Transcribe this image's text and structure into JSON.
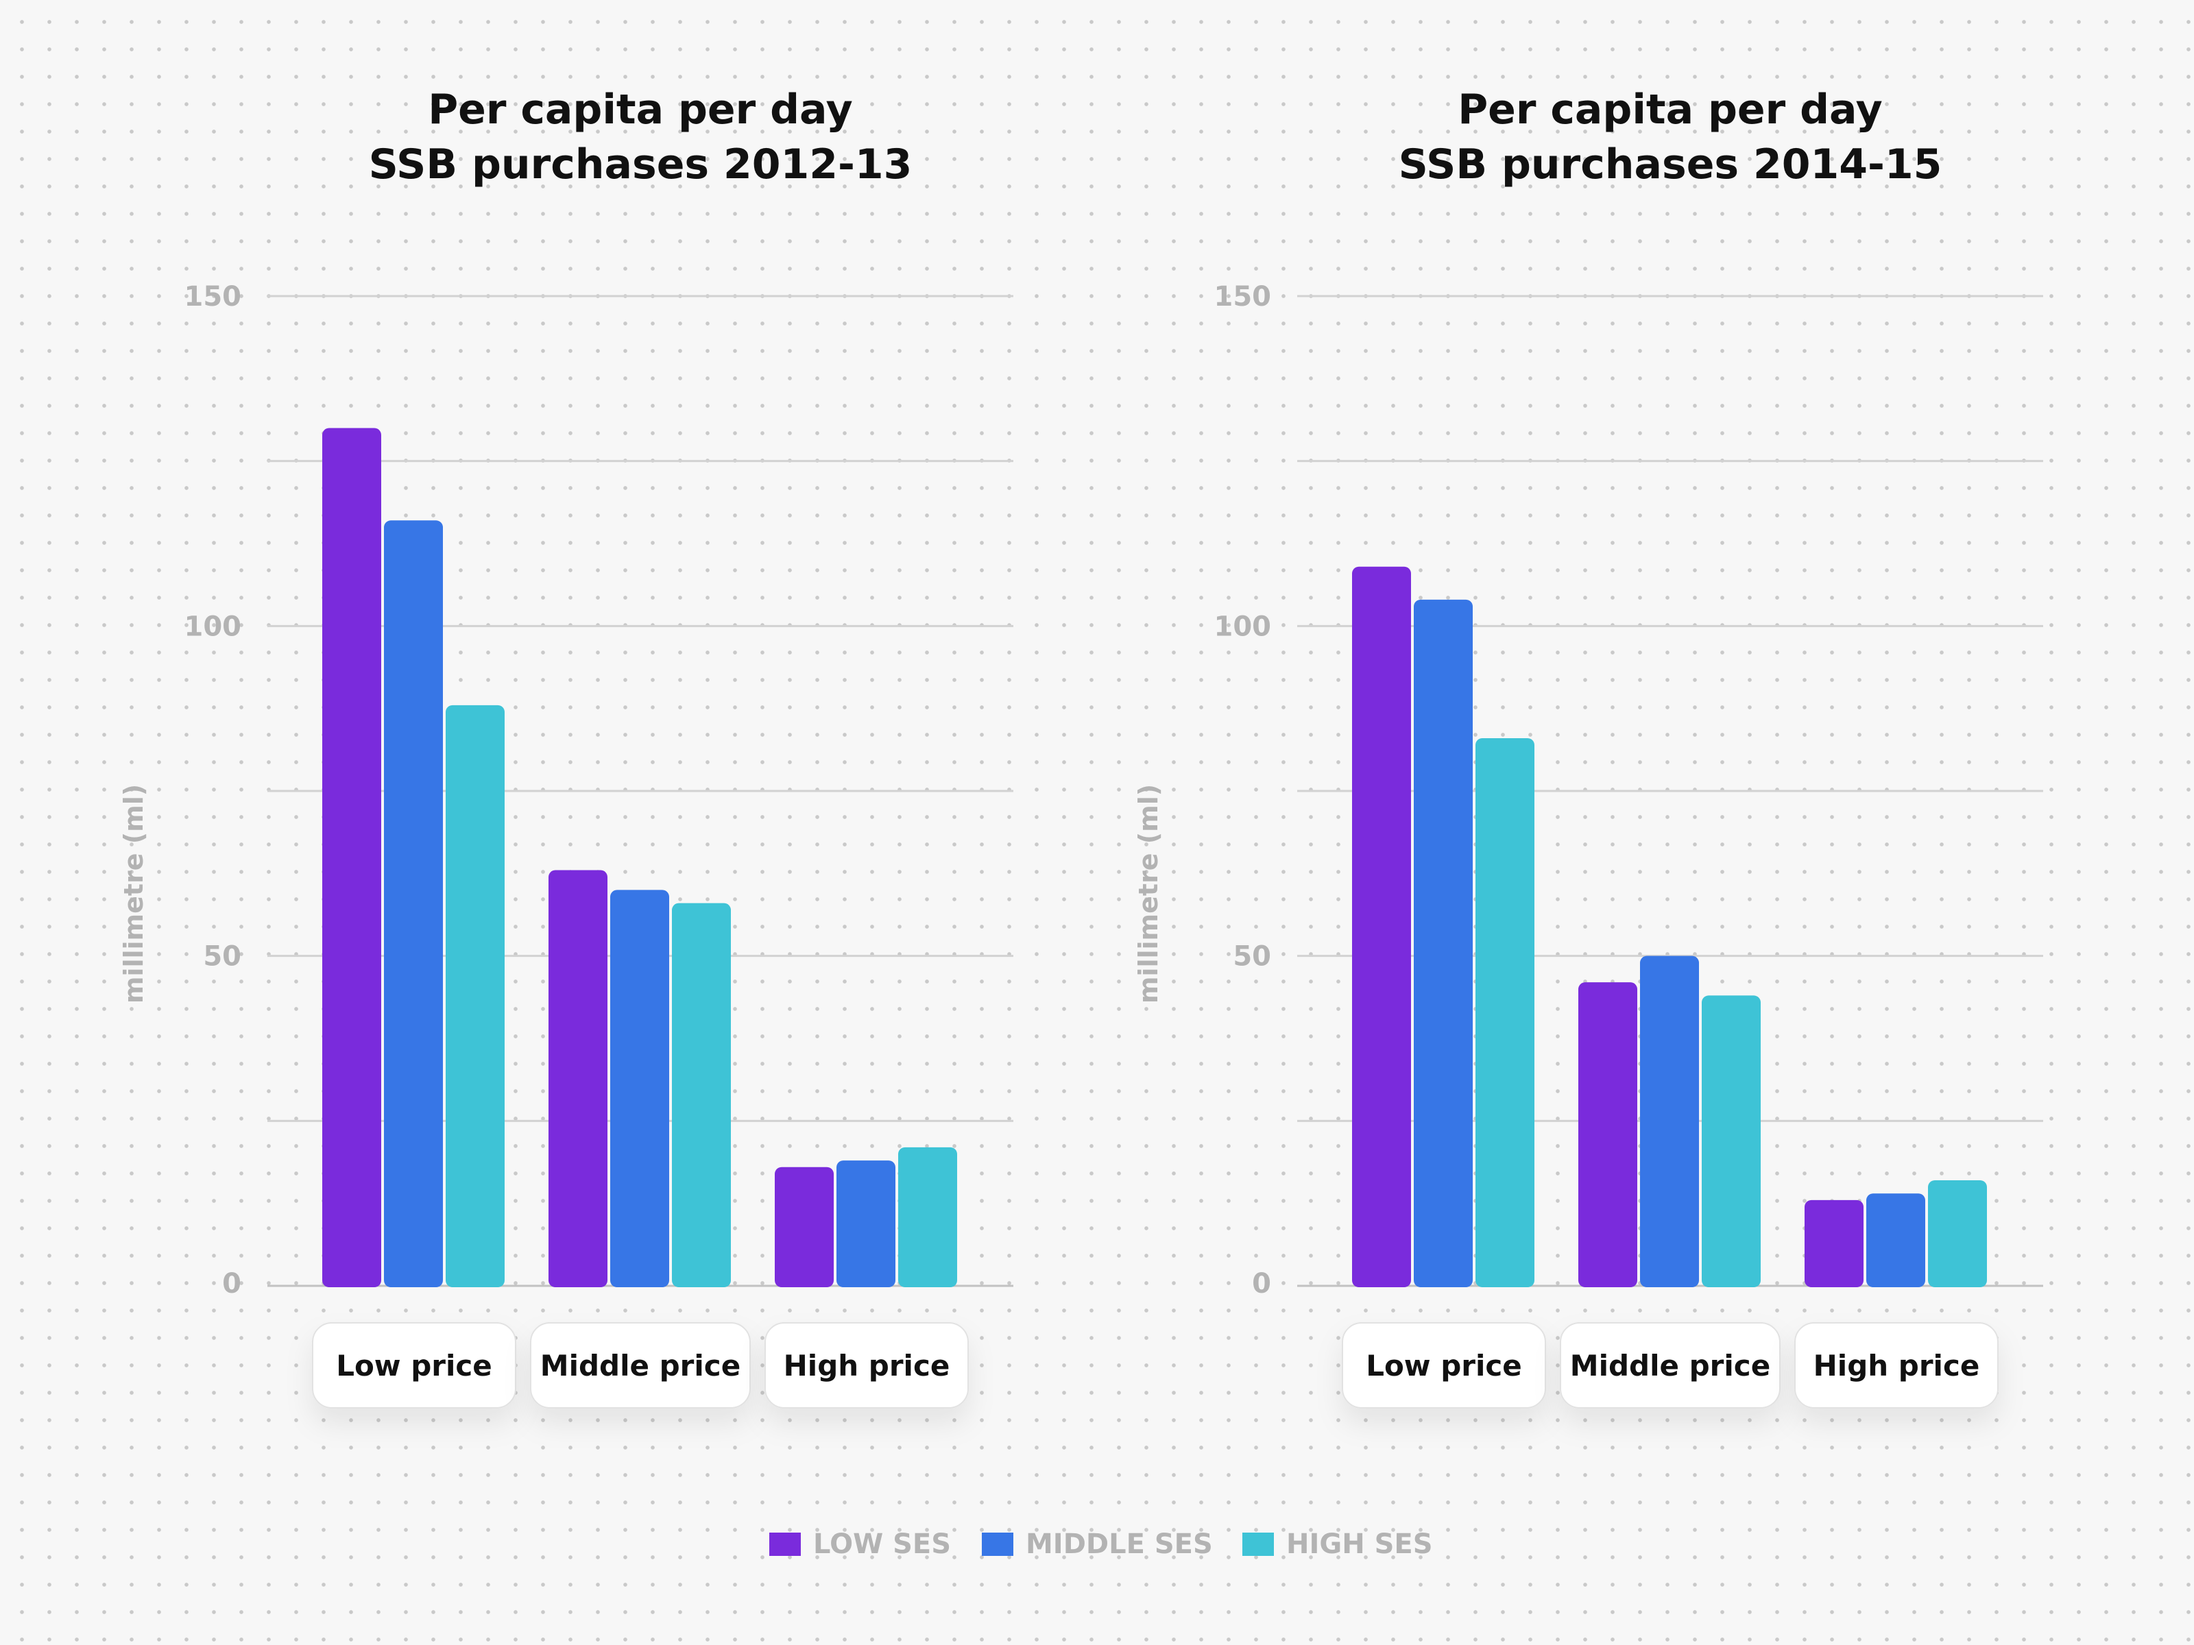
{
  "chart_data": [
    {
      "type": "bar",
      "title": [
        "Per capita per day",
        "SSB purchases 2012-13"
      ],
      "ylabel": "millimetre (ml)",
      "ylim": [
        0,
        150
      ],
      "yticks": [
        0,
        50,
        100,
        150
      ],
      "grid": true,
      "categories": [
        "Low price",
        "Middle price",
        "High price"
      ],
      "series": [
        {
          "name": "LOW SES",
          "color": "#7a2bdc",
          "values": [
            130,
            63,
            18
          ]
        },
        {
          "name": "MIDDLE SES",
          "color": "#3776e6",
          "values": [
            116,
            60,
            19
          ]
        },
        {
          "name": "HIGH SES",
          "color": "#3ec3d6",
          "values": [
            88,
            58,
            21
          ]
        }
      ]
    },
    {
      "type": "bar",
      "title": [
        "Per capita per day",
        "SSB purchases 2014-15"
      ],
      "ylabel": "millimetre (ml)",
      "ylim": [
        0,
        150
      ],
      "yticks": [
        0,
        50,
        100,
        150
      ],
      "grid": true,
      "categories": [
        "Low price",
        "Middle price",
        "High price"
      ],
      "series": [
        {
          "name": "LOW SES",
          "color": "#7a2bdc",
          "values": [
            109,
            46,
            13
          ]
        },
        {
          "name": "MIDDLE SES",
          "color": "#3776e6",
          "values": [
            104,
            50,
            14
          ]
        },
        {
          "name": "HIGH SES",
          "color": "#3ec3d6",
          "values": [
            83,
            44,
            16
          ]
        }
      ]
    }
  ],
  "legend": {
    "position": "bottom-center",
    "items": [
      {
        "label": "LOW SES",
        "color": "#7a2bdc"
      },
      {
        "label": "MIDDLE SES",
        "color": "#3776e6"
      },
      {
        "label": "HIGH SES",
        "color": "#3ec3d6"
      }
    ]
  }
}
